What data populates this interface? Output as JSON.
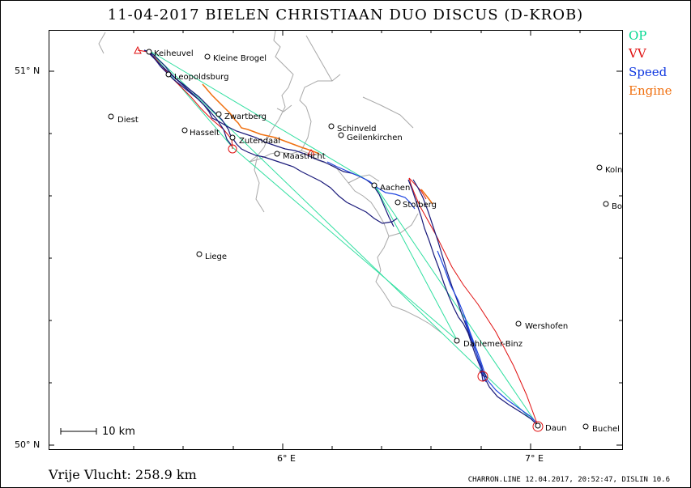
{
  "title": "11-04-2017    BIELEN CHRISTIAAN    DUO DISCUS (D-KROB)",
  "legend": {
    "op": {
      "label": "OP",
      "color": "#00d890"
    },
    "vv": {
      "label": "VV",
      "color": "#e01010"
    },
    "speed": {
      "label": "Speed",
      "color": "#1038e0"
    },
    "engine": {
      "label": "Engine",
      "color": "#f07010"
    }
  },
  "axes": {
    "lat_51": "51° N",
    "lat_50": "50° N",
    "lon_6": "6° E",
    "lon_7": "7° E"
  },
  "scale_bar": "10  km",
  "distance": "Vrije Vlucht:  258.9 km",
  "footer": "CHARRON.LINE 12.04.2017, 20:52:47, DISLIN 10.6",
  "places": [
    {
      "name": "Keiheuvel"
    },
    {
      "name": "Kleine Brogel"
    },
    {
      "name": "Leopoldsburg"
    },
    {
      "name": "Diest"
    },
    {
      "name": "Zwartberg"
    },
    {
      "name": "Hasselt"
    },
    {
      "name": "Zutendaal"
    },
    {
      "name": "Maastricht"
    },
    {
      "name": "Schinveld"
    },
    {
      "name": "Geilenkirchen"
    },
    {
      "name": "Aachen"
    },
    {
      "name": "Stolberg"
    },
    {
      "name": "Koln"
    },
    {
      "name": "Bo"
    },
    {
      "name": "Liege"
    },
    {
      "name": "Wershofen"
    },
    {
      "name": "Dahlemer-Binz"
    },
    {
      "name": "Daun"
    },
    {
      "name": "Buchel"
    }
  ]
}
